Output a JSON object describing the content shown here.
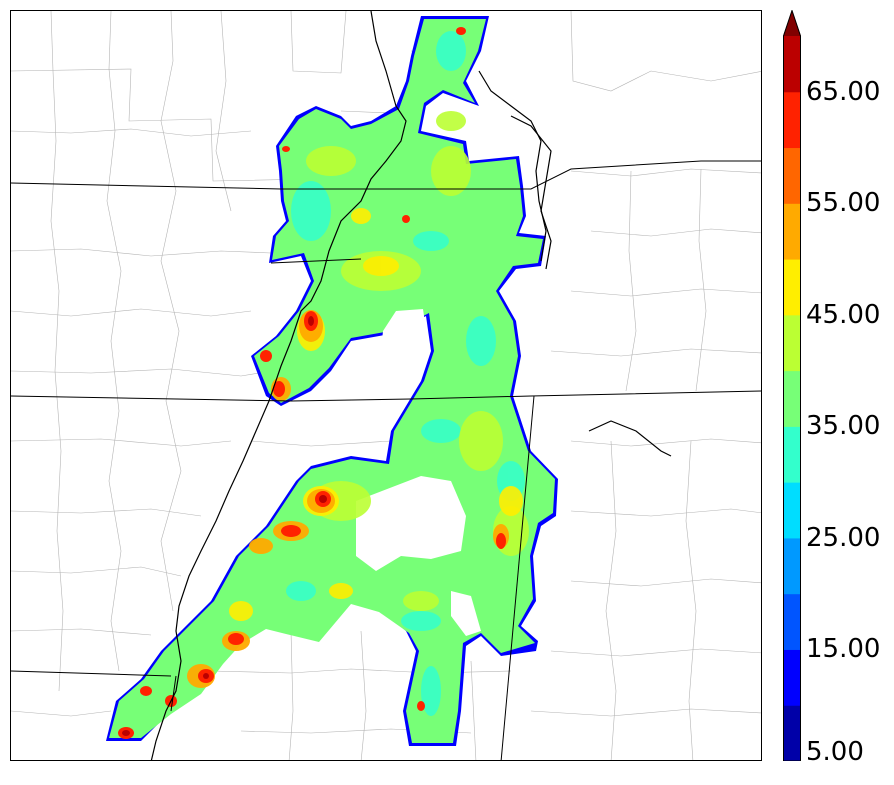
{
  "colorbar": {
    "labels": [
      "5.00",
      "15.00",
      "25.00",
      "35.00",
      "45.00",
      "55.00",
      "65.00"
    ],
    "bins": [
      {
        "color": "#0000a8"
      },
      {
        "color": "#0000ff"
      },
      {
        "color": "#0055ff"
      },
      {
        "color": "#0099ff"
      },
      {
        "color": "#00ddff"
      },
      {
        "color": "#33ffcc"
      },
      {
        "color": "#77ff77"
      },
      {
        "color": "#bbff33"
      },
      {
        "color": "#ffee00"
      },
      {
        "color": "#ffaa00"
      },
      {
        "color": "#ff6600"
      },
      {
        "color": "#ff2200"
      },
      {
        "color": "#bb0000"
      }
    ],
    "extend_color": "#800000"
  },
  "colors": {
    "base_fill": "#77ff77",
    "edge_blue": "#0000ff",
    "state_line": "#000000",
    "county_line": "#b4b4b4",
    "river_line": "#000000"
  }
}
